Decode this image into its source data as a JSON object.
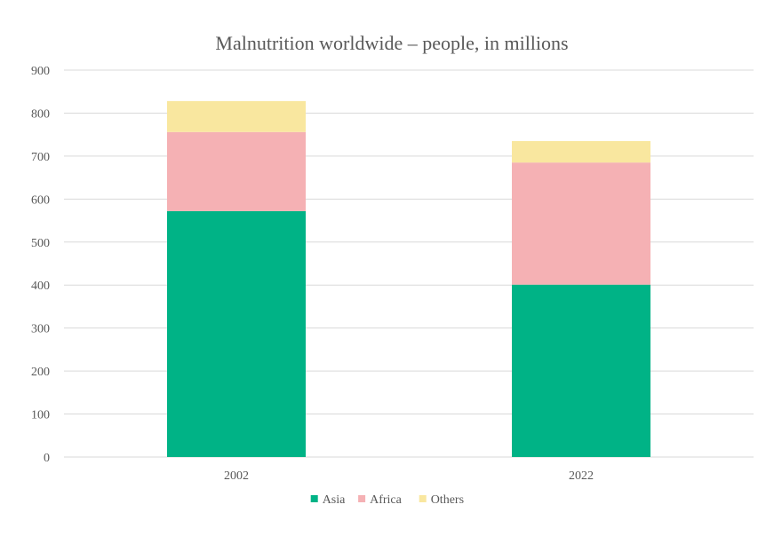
{
  "chart_data": {
    "type": "bar",
    "stacked": true,
    "title": "Malnutrition worldwide – people, in millions",
    "xlabel": "",
    "ylabel": "",
    "categories": [
      "2002",
      "2022"
    ],
    "series": [
      {
        "name": "Asia",
        "values": [
          572,
          401
        ],
        "color": "#00B386"
      },
      {
        "name": "Africa",
        "values": [
          184,
          284
        ],
        "color": "#F5B1B4"
      },
      {
        "name": "Others",
        "values": [
          72,
          50
        ],
        "color": "#F9E79F"
      }
    ],
    "ylim": [
      0,
      900
    ],
    "yticks": [
      0,
      100,
      200,
      300,
      400,
      500,
      600,
      700,
      800,
      900
    ],
    "grid": true,
    "gridColor": "#D9D9D9",
    "legend_position": "bottom"
  }
}
